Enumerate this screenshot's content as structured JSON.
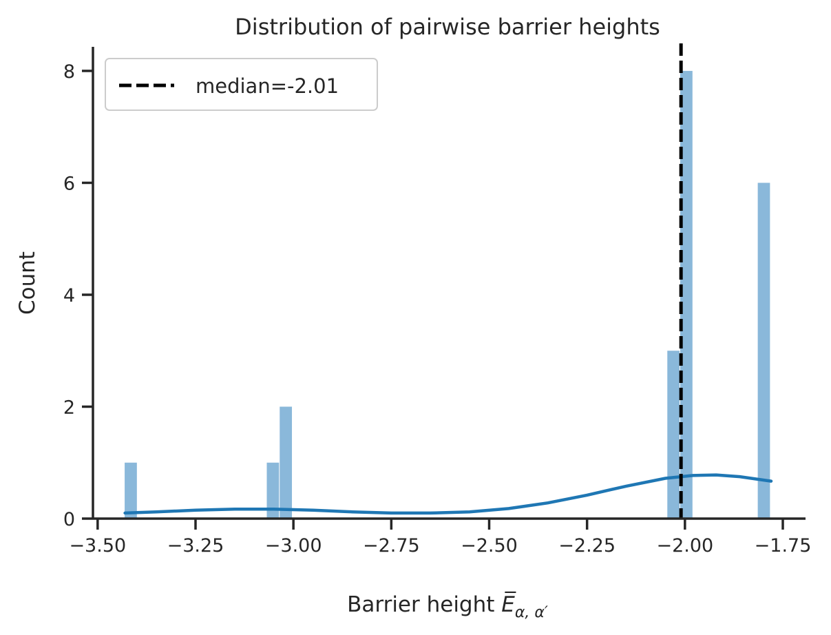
{
  "chart_data": {
    "type": "bar",
    "title": "Distribution of pairwise barrier heights",
    "xlabel": "Barrier height",
    "xlabel_math": "E̅",
    "xlabel_sub": "α, α′",
    "ylabel": "Count",
    "xlim": [
      -3.512,
      -1.692
    ],
    "ylim": [
      0,
      8.43
    ],
    "xticks": [
      -3.5,
      -3.25,
      -3.0,
      -2.75,
      -2.5,
      -2.25,
      -2.0,
      -1.75
    ],
    "xtick_labels": [
      "−3.50",
      "−3.25",
      "−3.00",
      "−2.75",
      "−2.50",
      "−2.25",
      "−2.00",
      "−1.75"
    ],
    "yticks": [
      0,
      2,
      4,
      6,
      8
    ],
    "ytick_labels": [
      "0",
      "2",
      "4",
      "6",
      "8"
    ],
    "grid": false,
    "bars": [
      {
        "x0": -3.431,
        "x1": -3.398,
        "count": 1
      },
      {
        "x0": -3.068,
        "x1": -3.035,
        "count": 1
      },
      {
        "x0": -3.035,
        "x1": -3.002,
        "count": 2
      },
      {
        "x0": -2.045,
        "x1": -2.012,
        "count": 3
      },
      {
        "x0": -2.012,
        "x1": -1.979,
        "count": 8
      },
      {
        "x0": -1.814,
        "x1": -1.781,
        "count": 6
      }
    ],
    "kde": {
      "x": [
        -3.43,
        -3.35,
        -3.25,
        -3.15,
        -3.05,
        -2.95,
        -2.85,
        -2.75,
        -2.65,
        -2.55,
        -2.45,
        -2.35,
        -2.25,
        -2.15,
        -2.05,
        -1.98,
        -1.92,
        -1.86,
        -1.78
      ],
      "y": [
        0.1,
        0.12,
        0.15,
        0.17,
        0.17,
        0.15,
        0.12,
        0.1,
        0.1,
        0.12,
        0.18,
        0.28,
        0.42,
        0.58,
        0.72,
        0.77,
        0.78,
        0.75,
        0.67
      ]
    },
    "median": {
      "value": -2.01,
      "label": "median=-2.01"
    },
    "legend_position": "top-left",
    "colors": {
      "bar": "#8ab8da",
      "kde": "#1f77b4",
      "median": "#000000",
      "axis": "#262626"
    }
  }
}
